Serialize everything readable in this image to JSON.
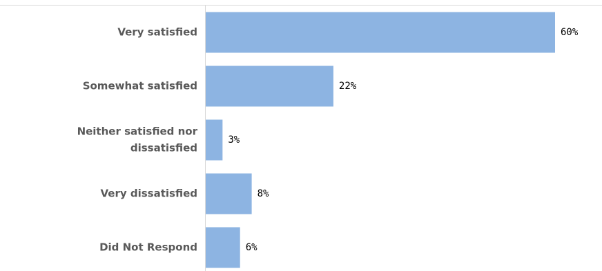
{
  "chart_data": {
    "type": "bar",
    "orientation": "horizontal",
    "categories": [
      [
        "Very satisfied"
      ],
      [
        "Somewhat satisfied"
      ],
      [
        "Neither satisfied nor",
        "dissatisfied"
      ],
      [
        "Very dissatisfied"
      ],
      [
        "Did Not Respond"
      ]
    ],
    "values": [
      60,
      22,
      3,
      8,
      6
    ],
    "value_labels": [
      "60%",
      "22%",
      "3%",
      "8%",
      "6%"
    ],
    "unit": "%",
    "xlim": [
      0,
      60
    ],
    "grid": false,
    "legend": "none",
    "bar_color": "#8db4e2",
    "axis_color": "#d9d9d9",
    "label_color": "#595959"
  }
}
